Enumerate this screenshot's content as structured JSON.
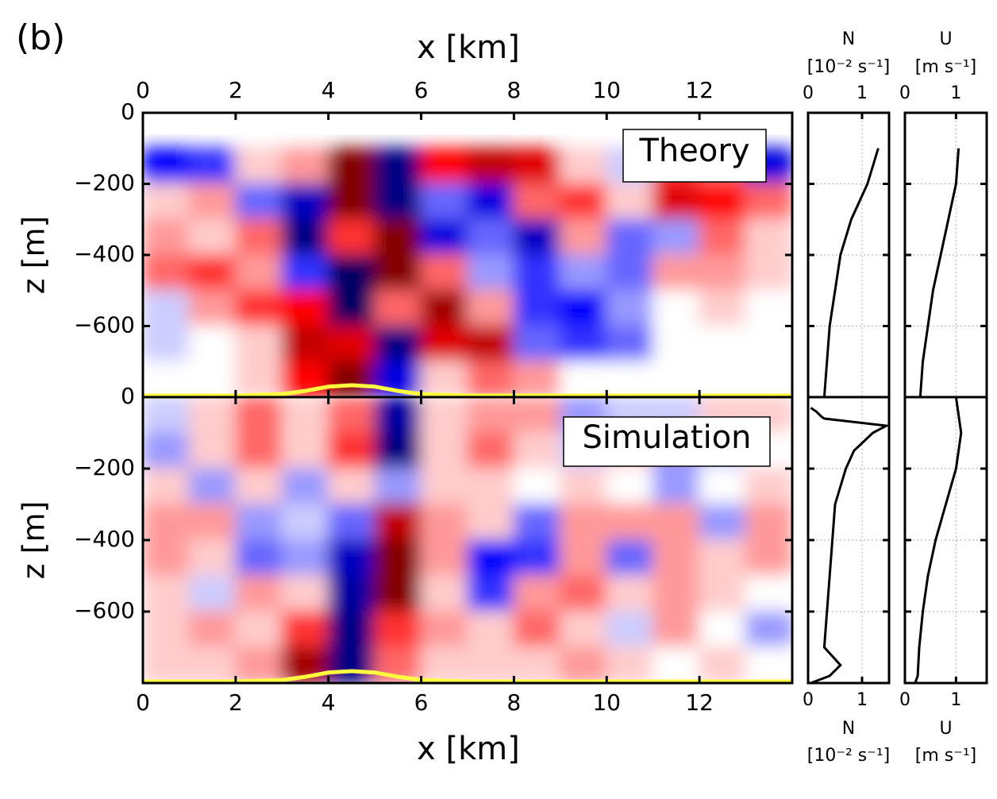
{
  "panel_label": "(b)",
  "chart_data": [
    {
      "type": "heatmap",
      "label": "Theory",
      "x_label": "x [km]",
      "y_label": "z [m]",
      "xlim": [
        0,
        14
      ],
      "xticks": [
        0,
        2,
        4,
        6,
        8,
        10,
        12
      ],
      "ylim": [
        -800,
        0
      ],
      "yticks": [
        0,
        {
          "value": -200,
          "label": "−200"
        },
        {
          "value": -400,
          "label": "−400"
        },
        {
          "value": -600,
          "label": "−600"
        }
      ],
      "x": [
        0.5,
        1.5,
        2.5,
        3.5,
        4.5,
        5.5,
        6.5,
        7.5,
        8.5,
        9.5,
        10.5,
        11.5,
        12.5,
        13.5
      ],
      "y": [
        -50,
        -150,
        -250,
        -350,
        -450,
        -550,
        -650,
        -750
      ],
      "z": [
        [
          null,
          null,
          null,
          null,
          null,
          null,
          null,
          null,
          null,
          null,
          null,
          null,
          null,
          null
        ],
        [
          -0.5,
          -0.4,
          0.1,
          0.2,
          0.9,
          -0.9,
          0.5,
          0.7,
          0.6,
          0.1,
          -0.1,
          0.4,
          0.3,
          -0.6
        ],
        [
          0.1,
          0.2,
          -0.3,
          -0.7,
          0.9,
          -0.9,
          -0.3,
          -0.6,
          0.3,
          0.4,
          0.1,
          0.6,
          0.5,
          0.3
        ],
        [
          0.2,
          0.1,
          0.3,
          -0.9,
          0.4,
          0.9,
          -0.6,
          -0.3,
          -0.7,
          0.2,
          -0.3,
          -0.2,
          0.3,
          0.1
        ],
        [
          0.3,
          0.4,
          0.2,
          -0.4,
          -1,
          0.9,
          0.3,
          -0.2,
          -0.4,
          -0.2,
          -0.3,
          0.2,
          0.2,
          0.1
        ],
        [
          -0.1,
          0.2,
          0.4,
          0.5,
          -1,
          0.3,
          0.8,
          0.2,
          -0.4,
          -0.5,
          -0.2,
          0,
          0.1,
          0
        ],
        [
          -0.1,
          0,
          0.1,
          0.7,
          0.6,
          -0.9,
          0.6,
          0.7,
          -0.3,
          -0.4,
          -0.3,
          0,
          0,
          0
        ],
        [
          0,
          0,
          0.1,
          0.5,
          0.9,
          -0.6,
          0.1,
          0.3,
          0.2,
          0,
          0,
          0,
          0,
          0
        ]
      ],
      "topography": {
        "color": "#ffff40",
        "x": [
          0,
          2,
          3,
          3.5,
          4,
          4.5,
          5,
          5.5,
          6,
          7,
          14
        ],
        "z": [
          -800,
          -800,
          -796,
          -787,
          -775,
          -771,
          -775,
          -787,
          -796,
          -800,
          -800
        ]
      }
    },
    {
      "type": "heatmap",
      "label": "Simulation",
      "x_label": "x [km]",
      "y_label": "z [m]",
      "xlim": [
        0,
        14
      ],
      "xticks": [
        0,
        2,
        4,
        6,
        8,
        10,
        12
      ],
      "ylim": [
        -800,
        0
      ],
      "yticks": [
        0,
        {
          "value": -200,
          "label": "−200"
        },
        {
          "value": -400,
          "label": "−400"
        },
        {
          "value": -600,
          "label": "−600"
        }
      ],
      "x": [
        0.5,
        1.5,
        2.5,
        3.5,
        4.5,
        5.5,
        6.5,
        7.5,
        8.5,
        9.5,
        10.5,
        11.5,
        12.5,
        13.5
      ],
      "y": [
        -50,
        -150,
        -250,
        -350,
        -450,
        -550,
        -650,
        -750
      ],
      "z": [
        [
          -0.1,
          0.1,
          0.3,
          0.1,
          0.3,
          -0.8,
          0.1,
          0.2,
          0.2,
          -0.2,
          -0.1,
          -0.1,
          0.1,
          0.1
        ],
        [
          -0.2,
          0.1,
          0.3,
          0.1,
          0.4,
          -0.9,
          0.1,
          0.3,
          0.1,
          -0.1,
          0.1,
          -0.2,
          -0.1,
          0
        ],
        [
          0.1,
          -0.2,
          0.1,
          -0.2,
          0.1,
          -0.2,
          0.1,
          0.1,
          0,
          0.1,
          0,
          -0.2,
          0,
          0.1
        ],
        [
          0.2,
          0.2,
          -0.2,
          -0.1,
          -0.3,
          0.7,
          0.2,
          0.1,
          -0.3,
          0.2,
          0.2,
          0.2,
          -0.2,
          0.2
        ],
        [
          0.2,
          0.1,
          -0.3,
          -0.2,
          -0.7,
          0.9,
          0.2,
          -0.5,
          -0.4,
          0.2,
          -0.3,
          0.2,
          0.1,
          0.2
        ],
        [
          0.1,
          -0.1,
          0.2,
          0.1,
          -0.8,
          0.9,
          0.1,
          -0.4,
          0.2,
          0.3,
          0.1,
          0.2,
          0.1,
          0
        ],
        [
          0.1,
          0.2,
          0.1,
          0.4,
          -0.9,
          0.4,
          0.2,
          0.1,
          0.3,
          0.1,
          -0.1,
          0.2,
          0,
          -0.2
        ],
        [
          0.1,
          0.1,
          0.2,
          0.8,
          -0.9,
          0.3,
          0.1,
          0.1,
          0.1,
          0.2,
          0.1,
          0,
          0.1,
          0
        ]
      ],
      "topography": {
        "color": "#ffff40",
        "x": [
          0,
          2,
          3,
          3.5,
          4,
          4.5,
          5,
          5.5,
          6,
          7,
          14
        ],
        "z": [
          -800,
          -800,
          -796,
          -787,
          -775,
          -771,
          -775,
          -787,
          -796,
          -800,
          -800
        ]
      }
    },
    {
      "type": "profile",
      "x_label": "N",
      "x_unit": "[10⁻² s⁻¹]",
      "xlim": [
        0,
        1.5
      ],
      "xticks": [
        0,
        1
      ],
      "ylim": [
        -800,
        0
      ],
      "yticks": [
        -200,
        -400,
        -600
      ],
      "grid": true,
      "series": [
        {
          "color": "#000000",
          "z": [
            -100,
            -200,
            -300,
            -400,
            -500,
            -600,
            -700,
            -800
          ],
          "values": [
            1.3,
            1.1,
            0.8,
            0.6,
            0.5,
            0.4,
            0.35,
            0.3
          ]
        }
      ]
    },
    {
      "type": "profile",
      "x_label": "U",
      "x_unit": "[m s⁻¹]",
      "xlim": [
        0,
        1.6
      ],
      "xticks": [
        0,
        1
      ],
      "ylim": [
        -800,
        0
      ],
      "yticks": [
        -200,
        -400,
        -600
      ],
      "grid": true,
      "series": [
        {
          "color": "#000000",
          "z": [
            -100,
            -200,
            -300,
            -400,
            -500,
            -600,
            -700,
            -800
          ],
          "values": [
            1.05,
            1.0,
            0.85,
            0.7,
            0.55,
            0.45,
            0.35,
            0.3
          ]
        }
      ]
    },
    {
      "type": "profile",
      "x_label": "N",
      "x_unit": "[10⁻² s⁻¹]",
      "xlim": [
        0,
        1.5
      ],
      "xticks": [
        0,
        1
      ],
      "ylim": [
        -800,
        0
      ],
      "yticks": [
        -200,
        -400,
        -600
      ],
      "grid": true,
      "series": [
        {
          "color": "#000000",
          "z": [
            -30,
            -40,
            -55,
            -60,
            -80,
            -100,
            -150,
            -200,
            -300,
            -400,
            -500,
            -600,
            -700,
            -750,
            -780,
            -800
          ],
          "values": [
            0.05,
            0.15,
            0.25,
            0.3,
            1.45,
            1.2,
            0.85,
            0.7,
            0.5,
            0.45,
            0.4,
            0.35,
            0.3,
            0.6,
            0.4,
            0.05
          ]
        }
      ]
    },
    {
      "type": "profile",
      "x_label": "U",
      "x_unit": "[m s⁻¹]",
      "xlim": [
        0,
        1.6
      ],
      "xticks": [
        0,
        1
      ],
      "ylim": [
        -800,
        0
      ],
      "yticks": [
        -200,
        -400,
        -600
      ],
      "grid": true,
      "series": [
        {
          "color": "#000000",
          "z": [
            0,
            -50,
            -100,
            -200,
            -300,
            -400,
            -500,
            -600,
            -700,
            -780,
            -800
          ],
          "values": [
            1.0,
            1.05,
            1.1,
            1.0,
            0.8,
            0.6,
            0.45,
            0.35,
            0.28,
            0.25,
            0.2
          ]
        }
      ]
    }
  ]
}
